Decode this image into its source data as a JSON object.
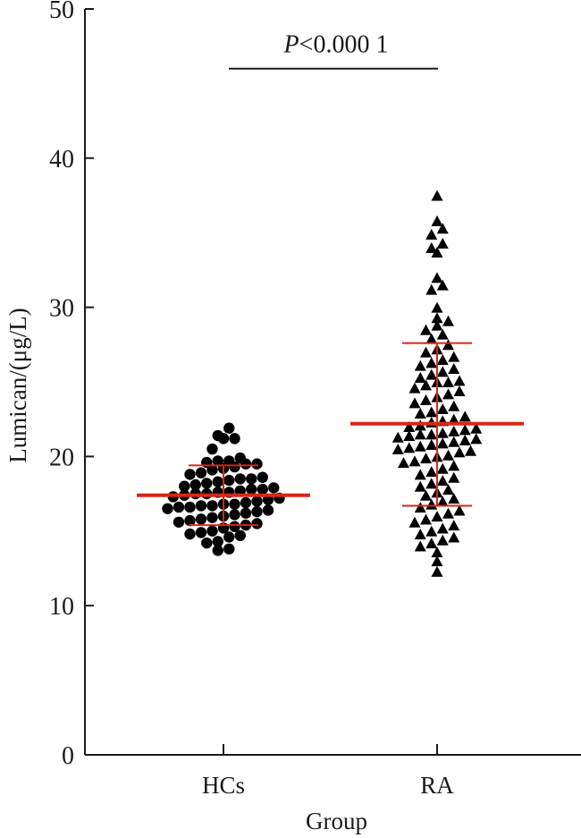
{
  "chart_data": {
    "type": "scatter",
    "subtype": "dot-plot-mean-sd",
    "xlabel": "Group",
    "ylabel": "Lumican/(μg/L)",
    "ylim": [
      0,
      50
    ],
    "yticks": [
      0,
      10,
      20,
      30,
      40,
      50
    ],
    "categories": [
      "HCs",
      "RA"
    ],
    "annotation": {
      "prefix": "P",
      "text": "<0.000 1",
      "between": [
        "HCs",
        "RA"
      ],
      "y": 46
    },
    "colors": {
      "points": "#000000",
      "summary": "#d62718",
      "axis": "#1a1a1a"
    },
    "series": [
      {
        "group": "HCs",
        "marker": "circle",
        "mean": 17.4,
        "sd_low": 15.4,
        "sd_high": 19.4,
        "values": [
          21.9,
          21.4,
          21.2,
          21.2,
          20.5,
          19.9,
          19.7,
          19.7,
          19.6,
          19.5,
          19.5,
          19.3,
          19.2,
          19.1,
          18.9,
          18.8,
          18.6,
          18.5,
          18.5,
          18.4,
          18.3,
          18.2,
          18.1,
          18.0,
          17.9,
          17.8,
          17.8,
          17.7,
          17.6,
          17.6,
          17.5,
          17.5,
          17.4,
          17.3,
          17.2,
          17.1,
          17.0,
          16.9,
          16.8,
          16.8,
          16.7,
          16.7,
          16.6,
          16.6,
          16.5,
          16.4,
          16.3,
          16.2,
          16.1,
          16.0,
          15.9,
          15.8,
          15.7,
          15.6,
          15.5,
          15.4,
          15.3,
          15.2,
          15.0,
          14.9,
          14.8,
          14.7,
          14.6,
          14.3,
          14.2,
          13.8,
          13.7
        ]
      },
      {
        "group": "RA",
        "marker": "triangle",
        "mean": 22.2,
        "sd_low": 16.7,
        "sd_high": 27.6,
        "values": [
          37.5,
          35.8,
          35.3,
          34.9,
          34.3,
          34.0,
          33.7,
          32.0,
          31.5,
          31.2,
          30.0,
          29.3,
          29.1,
          28.8,
          28.5,
          28.2,
          27.9,
          27.5,
          27.2,
          27.0,
          26.7,
          26.5,
          26.3,
          26.1,
          25.9,
          25.7,
          25.5,
          25.3,
          25.1,
          25.0,
          25.0,
          24.8,
          24.6,
          24.4,
          24.2,
          24.0,
          23.8,
          23.6,
          23.4,
          23.2,
          23.0,
          22.9,
          22.7,
          22.5,
          22.4,
          22.3,
          22.1,
          22.0,
          21.9,
          21.8,
          21.7,
          21.6,
          21.5,
          21.5,
          21.4,
          21.3,
          21.2,
          21.1,
          21.0,
          20.9,
          20.8,
          20.7,
          20.6,
          20.5,
          20.4,
          20.3,
          20.1,
          20.0,
          19.9,
          19.7,
          19.6,
          19.4,
          19.2,
          19.0,
          18.8,
          18.6,
          18.4,
          18.2,
          18.0,
          17.8,
          17.6,
          17.4,
          17.2,
          17.0,
          16.8,
          16.6,
          16.4,
          16.2,
          16.0,
          15.8,
          15.6,
          15.4,
          15.2,
          15.0,
          14.8,
          14.6,
          14.4,
          14.2,
          14.0,
          13.6,
          13.0,
          12.3
        ]
      }
    ]
  }
}
